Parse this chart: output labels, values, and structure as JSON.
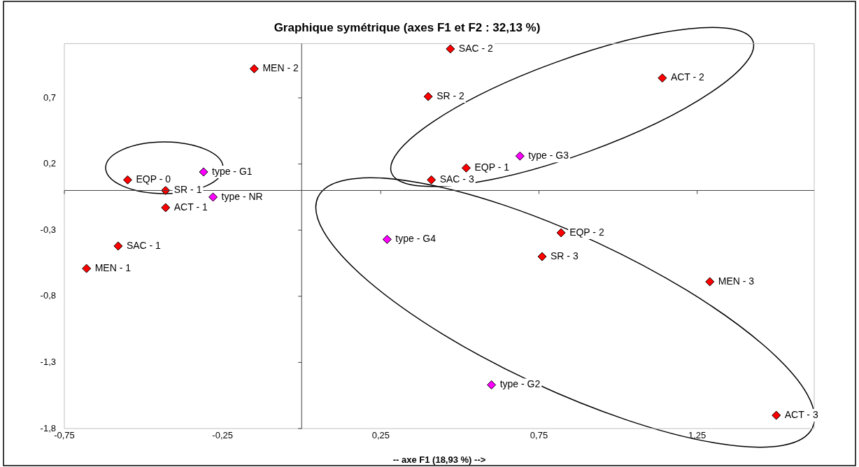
{
  "chart_data": {
    "type": "scatter",
    "title": "Graphique symétrique (axes F1 et F2 : 32,13 %)",
    "xlabel": "-- axe F1 (18,93 %) -->",
    "xlim": [
      -0.75,
      1.62
    ],
    "ylim": [
      -1.8,
      1.11
    ],
    "xticks": [
      {
        "value": -0.75,
        "label": "-0,75"
      },
      {
        "value": -0.25,
        "label": "-0,25"
      },
      {
        "value": 0.25,
        "label": "0,25"
      },
      {
        "value": 0.75,
        "label": "0,75"
      },
      {
        "value": 1.25,
        "label": "1,25"
      }
    ],
    "yticks": [
      {
        "value": -1.8,
        "label": "-1,8"
      },
      {
        "value": -1.3,
        "label": "-1,3"
      },
      {
        "value": -0.8,
        "label": "-0,8"
      },
      {
        "value": -0.3,
        "label": "-0,3"
      },
      {
        "value": 0.2,
        "label": "0,2"
      },
      {
        "value": 0.7,
        "label": "0,7"
      }
    ],
    "grid": false,
    "legend": false,
    "marker": "diamond",
    "series": [
      {
        "color": "#ff0000",
        "x": [
          -0.15,
          -0.55,
          -0.43,
          -0.43,
          -0.58,
          -0.68,
          0.47,
          0.4,
          1.14,
          0.52,
          0.41,
          0.82,
          0.76,
          1.29,
          1.5
        ],
        "values": [
          0.92,
          0.08,
          0.0,
          -0.13,
          -0.42,
          -0.59,
          1.07,
          0.71,
          0.85,
          0.17,
          0.08,
          -0.32,
          -0.5,
          -0.69,
          -1.7
        ]
      },
      {
        "color": "#ff00ff",
        "x": [
          -0.31,
          -0.28,
          0.69,
          0.27,
          0.6
        ],
        "values": [
          0.14,
          -0.05,
          0.26,
          -0.37,
          -1.47
        ]
      }
    ],
    "annotations": [
      {
        "text": "MEN - 2",
        "x": -0.15,
        "y": 0.92
      },
      {
        "text": "EQP - 0",
        "x": -0.55,
        "y": 0.08
      },
      {
        "text": "SR - 1",
        "x": -0.43,
        "y": 0.0
      },
      {
        "text": "ACT - 1",
        "x": -0.43,
        "y": -0.13
      },
      {
        "text": "SAC - 1",
        "x": -0.58,
        "y": -0.42
      },
      {
        "text": "MEN - 1",
        "x": -0.68,
        "y": -0.59
      },
      {
        "text": "SAC - 2",
        "x": 0.47,
        "y": 1.07
      },
      {
        "text": "SR - 2",
        "x": 0.4,
        "y": 0.71
      },
      {
        "text": "ACT - 2",
        "x": 1.14,
        "y": 0.85
      },
      {
        "text": "EQP - 1",
        "x": 0.52,
        "y": 0.17
      },
      {
        "text": "SAC - 3",
        "x": 0.41,
        "y": 0.08
      },
      {
        "text": "EQP - 2",
        "x": 0.82,
        "y": -0.32
      },
      {
        "text": "SR - 3",
        "x": 0.76,
        "y": -0.5
      },
      {
        "text": "MEN - 3",
        "x": 1.29,
        "y": -0.69
      },
      {
        "text": "ACT - 3",
        "x": 1.5,
        "y": -1.7
      },
      {
        "text": "type - G1",
        "x": -0.31,
        "y": 0.14
      },
      {
        "text": "type - NR",
        "x": -0.28,
        "y": -0.05
      },
      {
        "text": "type - G3",
        "x": 0.69,
        "y": 0.26
      },
      {
        "text": "type - G4",
        "x": 0.27,
        "y": -0.37
      },
      {
        "text": "type - G2",
        "x": 0.6,
        "y": -1.47
      }
    ]
  }
}
